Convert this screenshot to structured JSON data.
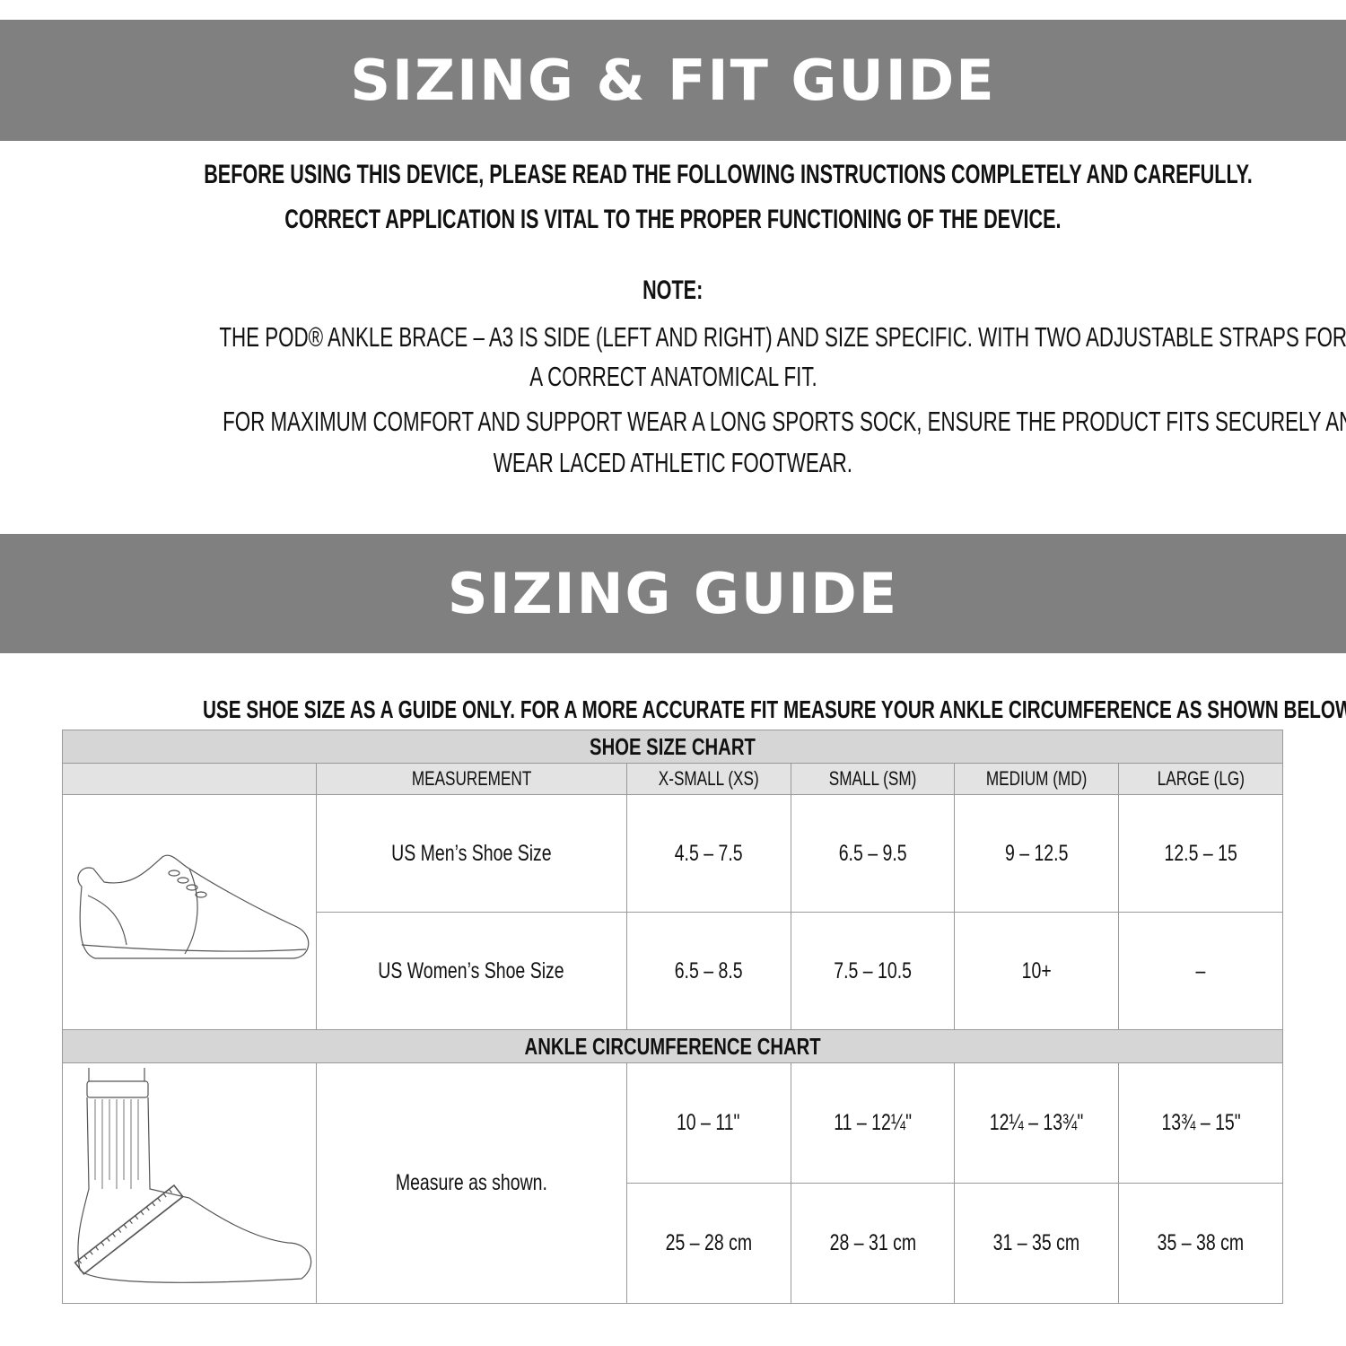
{
  "banner1": {
    "title": "SIZING & FIT GUIDE"
  },
  "intro": {
    "line1": "BEFORE USING THIS DEVICE, PLEASE READ THE FOLLOWING INSTRUCTIONS COMPLETELY AND CAREFULLY.",
    "line2": "CORRECT APPLICATION IS VITAL TO THE PROPER FUNCTIONING OF THE DEVICE."
  },
  "note": {
    "heading": "NOTE:",
    "line1": "THE POD® ANKLE BRACE – A3 IS SIDE (LEFT AND RIGHT) AND SIZE SPECIFIC. WITH TWO ADJUSTABLE STRAPS FOR",
    "line2": "A CORRECT ANATOMICAL FIT.",
    "line3": "FOR MAXIMUM COMFORT AND SUPPORT WEAR A LONG SPORTS SOCK, ENSURE THE PRODUCT FITS SECURELY AND",
    "line4": "WEAR LACED ATHLETIC FOOTWEAR."
  },
  "banner2": {
    "title": "SIZING GUIDE"
  },
  "guide_note": "USE SHOE SIZE AS A GUIDE ONLY. FOR A MORE ACCURATE FIT MEASURE YOUR ANKLE CIRCUMFERENCE AS SHOWN BELOW.",
  "table": {
    "shoe_title": "SHOE SIZE CHART",
    "headers": [
      "MEASUREMENT",
      "X-SMALL (XS)",
      "SMALL (SM)",
      "MEDIUM (MD)",
      "LARGE (LG)"
    ],
    "shoe_rows": [
      [
        "US Men’s Shoe Size",
        "4.5 – 7.5",
        "6.5 – 9.5",
        "9 – 12.5",
        "12.5 – 15"
      ],
      [
        "US Women’s Shoe Size",
        "6.5 – 8.5",
        "7.5 – 10.5",
        "10+",
        "–"
      ]
    ],
    "ankle_title": "ANKLE CIRCUMFERENCE CHART",
    "ankle_label": "Measure as shown.",
    "ankle_inches": [
      "10 – 11\"",
      "11 – 12¼\"",
      "12¼ – 13¾\"",
      "13¾ – 15\""
    ],
    "ankle_cm": [
      "25 – 28 cm",
      "28 – 31 cm",
      "31 – 35 cm",
      "35 – 38 cm"
    ]
  }
}
